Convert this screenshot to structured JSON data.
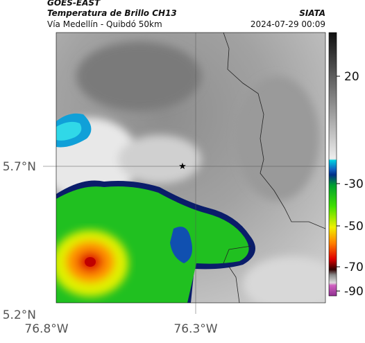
{
  "header": {
    "source": "GOES-EAST",
    "title": "Temperatura de Brillo CH13",
    "subtitle": "Vía Medellín - Quibdó 50km",
    "organization": "SIATA",
    "datetime": "2024-07-29 00:09"
  },
  "map": {
    "lat_labels": [
      "5.7°N",
      "5.2°N"
    ],
    "lon_labels": [
      "76.8°W",
      "76.3°W"
    ]
  },
  "colorbar": {
    "tick_labels": [
      "20",
      "-30",
      "-50",
      "-70",
      "-90"
    ]
  }
}
